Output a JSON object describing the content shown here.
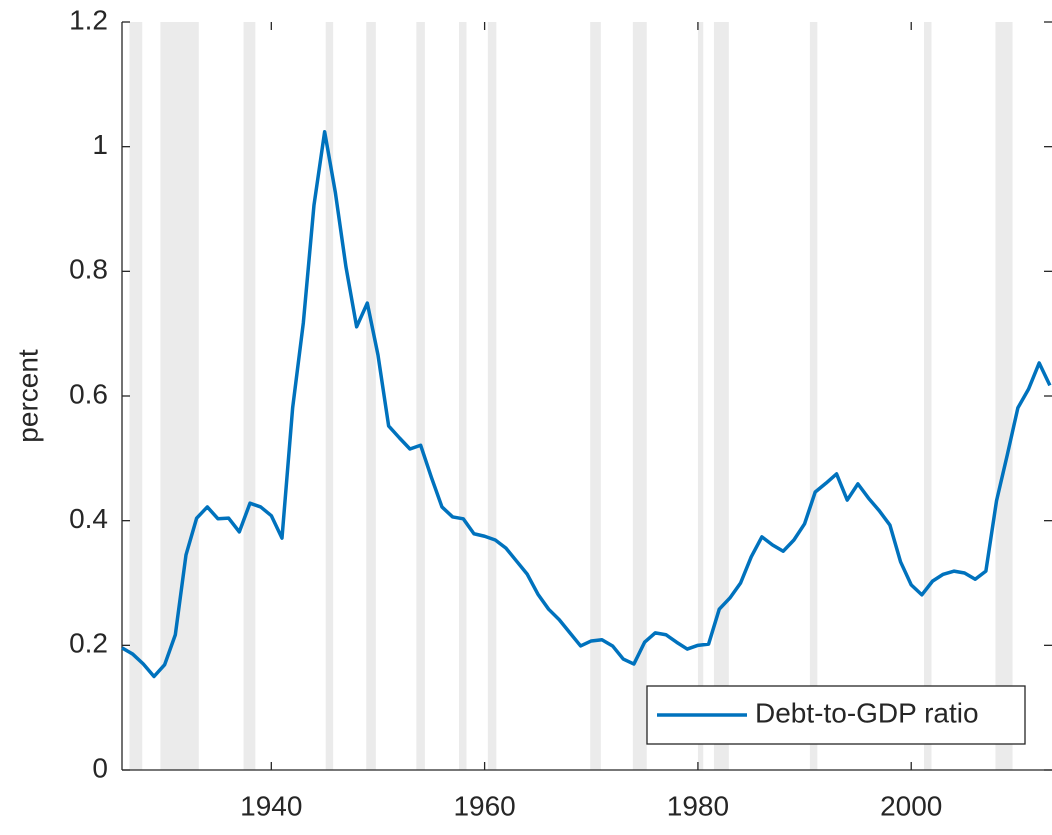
{
  "chart_data": {
    "type": "line",
    "ylabel": "percent",
    "x": [
      1926,
      1927,
      1928,
      1929,
      1930,
      1931,
      1932,
      1933,
      1934,
      1935,
      1936,
      1937,
      1938,
      1939,
      1940,
      1941,
      1942,
      1943,
      1944,
      1945,
      1946,
      1947,
      1948,
      1949,
      1950,
      1951,
      1952,
      1953,
      1954,
      1955,
      1956,
      1957,
      1958,
      1959,
      1960,
      1961,
      1962,
      1963,
      1964,
      1965,
      1966,
      1967,
      1968,
      1969,
      1970,
      1971,
      1972,
      1973,
      1974,
      1975,
      1976,
      1977,
      1978,
      1979,
      1980,
      1981,
      1982,
      1983,
      1984,
      1985,
      1986,
      1987,
      1988,
      1989,
      1990,
      1991,
      1992,
      1993,
      1994,
      1995,
      1996,
      1997,
      1998,
      1999,
      2000,
      2001,
      2002,
      2003,
      2004,
      2005,
      2006,
      2007,
      2008,
      2009,
      2010,
      2011,
      2012,
      2013
    ],
    "series": [
      {
        "name": "Debt-to-GDP ratio",
        "color": "#0072bd",
        "values": [
          0.196,
          0.186,
          0.17,
          0.15,
          0.169,
          0.217,
          0.345,
          0.404,
          0.422,
          0.403,
          0.404,
          0.382,
          0.428,
          0.422,
          0.408,
          0.372,
          0.581,
          0.717,
          0.906,
          1.024,
          0.927,
          0.807,
          0.711,
          0.749,
          0.666,
          0.552,
          0.533,
          0.515,
          0.521,
          0.47,
          0.422,
          0.406,
          0.403,
          0.379,
          0.375,
          0.369,
          0.356,
          0.335,
          0.314,
          0.282,
          0.258,
          0.241,
          0.22,
          0.199,
          0.207,
          0.209,
          0.199,
          0.178,
          0.17,
          0.205,
          0.22,
          0.217,
          0.205,
          0.194,
          0.2,
          0.202,
          0.258,
          0.276,
          0.3,
          0.342,
          0.374,
          0.361,
          0.351,
          0.369,
          0.395,
          0.446,
          0.46,
          0.475,
          0.433,
          0.459,
          0.436,
          0.416,
          0.393,
          0.334,
          0.297,
          0.281,
          0.303,
          0.314,
          0.319,
          0.316,
          0.306,
          0.319,
          0.432,
          0.505,
          0.581,
          0.611,
          0.653,
          0.617
        ]
      }
    ],
    "shaded_periods": [
      [
        1926.7,
        1927.9
      ],
      [
        1929.6,
        1933.2
      ],
      [
        1937.4,
        1938.5
      ],
      [
        1945.1,
        1945.8
      ],
      [
        1948.9,
        1949.8
      ],
      [
        1953.6,
        1954.4
      ],
      [
        1957.6,
        1958.3
      ],
      [
        1960.3,
        1961.1
      ],
      [
        1969.9,
        1970.9
      ],
      [
        1973.9,
        1975.2
      ],
      [
        1980.0,
        1980.5
      ],
      [
        1981.5,
        1982.9
      ],
      [
        1990.5,
        1991.2
      ],
      [
        2001.2,
        2001.9
      ],
      [
        2007.9,
        2009.5
      ]
    ],
    "shade_color": "#ebebeb",
    "xlim": [
      1926,
      2013.2
    ],
    "xticks": [
      1940,
      1960,
      1980,
      2000
    ],
    "ylim": [
      0,
      1.2
    ],
    "yticks": [
      0,
      0.2,
      0.4,
      0.6,
      0.8,
      1,
      1.2
    ],
    "grid": false,
    "legend": "lower right"
  }
}
